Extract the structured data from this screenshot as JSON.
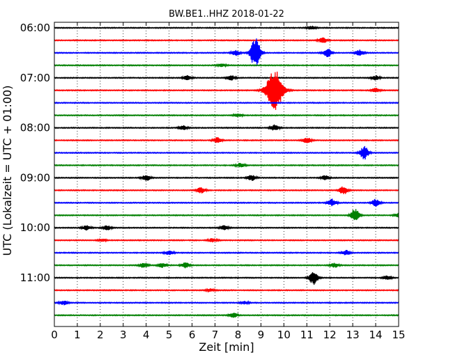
{
  "chart_data": {
    "type": "line",
    "title": "BW.BE1..HHZ 2018-01-22",
    "xlabel": "Zeit  [min]",
    "ylabel": "UTC (Lokalzeit = UTC + 01:00)",
    "xlim": [
      0,
      15
    ],
    "x_ticks": [
      "0",
      "1",
      "2",
      "3",
      "4",
      "5",
      "6",
      "7",
      "8",
      "9",
      "10",
      "11",
      "12",
      "13",
      "14",
      "15"
    ],
    "y_tick_labels": [
      "06:00",
      "07:00",
      "08:00",
      "09:00",
      "10:00",
      "11:00"
    ],
    "grid": "vertical-dotted",
    "trace_colors": [
      "#000000",
      "#ff0000",
      "#0000ff",
      "#008000"
    ],
    "traces": [
      {
        "start": "06:00",
        "events": [
          {
            "t": 11.2,
            "a": 0.25
          }
        ]
      },
      {
        "start": "06:15",
        "events": [
          {
            "t": 11.7,
            "a": 0.35
          }
        ]
      },
      {
        "start": "06:30",
        "events": [
          {
            "t": 7.9,
            "a": 0.4
          },
          {
            "t": 8.7,
            "a": 1.4
          },
          {
            "t": 8.85,
            "a": 1.1
          },
          {
            "t": 11.9,
            "a": 0.6
          },
          {
            "t": 13.3,
            "a": 0.4
          }
        ]
      },
      {
        "start": "06:45",
        "events": [
          {
            "t": 7.3,
            "a": 0.2
          }
        ]
      },
      {
        "start": "07:00",
        "events": [
          {
            "t": 5.8,
            "a": 0.3
          },
          {
            "t": 7.7,
            "a": 0.35
          },
          {
            "t": 14.0,
            "a": 0.3
          }
        ]
      },
      {
        "start": "07:15",
        "events": [
          {
            "t": 9.6,
            "a": 2.8
          },
          {
            "t": 14.0,
            "a": 0.3
          }
        ]
      },
      {
        "start": "07:30",
        "events": []
      },
      {
        "start": "07:45",
        "events": [
          {
            "t": 8.0,
            "a": 0.2
          }
        ]
      },
      {
        "start": "08:00",
        "events": [
          {
            "t": 5.6,
            "a": 0.3
          },
          {
            "t": 9.6,
            "a": 0.4
          }
        ]
      },
      {
        "start": "08:15",
        "events": [
          {
            "t": 7.1,
            "a": 0.4
          },
          {
            "t": 11.0,
            "a": 0.4
          }
        ]
      },
      {
        "start": "08:30",
        "events": [
          {
            "t": 13.5,
            "a": 0.9
          }
        ]
      },
      {
        "start": "08:45",
        "events": [
          {
            "t": 8.1,
            "a": 0.3
          }
        ]
      },
      {
        "start": "09:00",
        "events": [
          {
            "t": 4.0,
            "a": 0.4
          },
          {
            "t": 8.6,
            "a": 0.4
          },
          {
            "t": 11.8,
            "a": 0.3
          }
        ]
      },
      {
        "start": "09:15",
        "events": [
          {
            "t": 6.4,
            "a": 0.4
          },
          {
            "t": 12.6,
            "a": 0.6
          }
        ]
      },
      {
        "start": "09:30",
        "events": [
          {
            "t": 12.1,
            "a": 0.5
          },
          {
            "t": 14.0,
            "a": 0.5
          }
        ]
      },
      {
        "start": "09:45",
        "events": [
          {
            "t": 13.1,
            "a": 0.9
          },
          {
            "t": 15.0,
            "a": 0.3
          }
        ]
      },
      {
        "start": "10:00",
        "events": [
          {
            "t": 1.4,
            "a": 0.3
          },
          {
            "t": 2.3,
            "a": 0.3
          },
          {
            "t": 7.4,
            "a": 0.3
          }
        ]
      },
      {
        "start": "10:15",
        "events": [
          {
            "t": 2.1,
            "a": 0.2
          },
          {
            "t": 6.9,
            "a": 0.25
          }
        ]
      },
      {
        "start": "10:30",
        "events": [
          {
            "t": 5.0,
            "a": 0.3
          },
          {
            "t": 12.7,
            "a": 0.35
          }
        ]
      },
      {
        "start": "10:45",
        "events": [
          {
            "t": 3.9,
            "a": 0.35
          },
          {
            "t": 4.7,
            "a": 0.3
          },
          {
            "t": 5.7,
            "a": 0.4
          },
          {
            "t": 12.2,
            "a": 0.3
          }
        ]
      },
      {
        "start": "11:00",
        "events": [
          {
            "t": 11.3,
            "a": 1.0
          },
          {
            "t": 14.5,
            "a": 0.3
          }
        ]
      },
      {
        "start": "11:15",
        "events": [
          {
            "t": 6.8,
            "a": 0.2
          }
        ]
      },
      {
        "start": "11:30",
        "events": [
          {
            "t": 0.4,
            "a": 0.3
          },
          {
            "t": 8.3,
            "a": 0.2
          }
        ]
      },
      {
        "start": "11:45",
        "events": [
          {
            "t": 7.8,
            "a": 0.3
          }
        ]
      }
    ]
  }
}
